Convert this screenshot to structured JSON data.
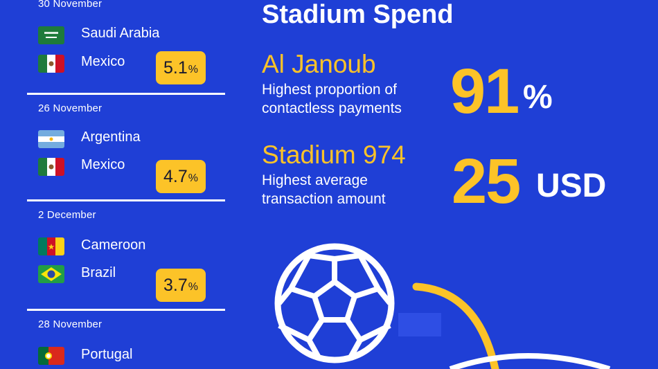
{
  "matches": [
    {
      "date": "30 November",
      "teams": [
        "Saudi Arabia",
        "Mexico"
      ],
      "pct": "5.1",
      "pct_unit": "%"
    },
    {
      "date": "26 November",
      "teams": [
        "Argentina",
        "Mexico"
      ],
      "pct": "4.7",
      "pct_unit": "%"
    },
    {
      "date": "2 December",
      "teams": [
        "Cameroon",
        "Brazil"
      ],
      "pct": "3.7",
      "pct_unit": "%"
    },
    {
      "date": "28 November",
      "teams": [
        "Portugal"
      ]
    }
  ],
  "stadium": {
    "heading": "Stadium Spend",
    "items": [
      {
        "venue": "Al Janoub",
        "desc_line1": "Highest proportion of",
        "desc_line2": "contactless payments",
        "value": "91",
        "unit": "%"
      },
      {
        "venue": "Stadium 974",
        "desc_line1": "Highest average",
        "desc_line2": "transaction amount",
        "value": "25",
        "unit": "USD"
      }
    ]
  },
  "colors": {
    "background": "#1f3fd6",
    "accent": "#fcc328",
    "text": "#ffffff"
  },
  "icons": [
    "saudi-arabia-flag-icon",
    "mexico-flag-icon",
    "argentina-flag-icon",
    "cameroon-flag-icon",
    "brazil-flag-icon",
    "portugal-flag-icon",
    "soccer-ball-icon"
  ]
}
